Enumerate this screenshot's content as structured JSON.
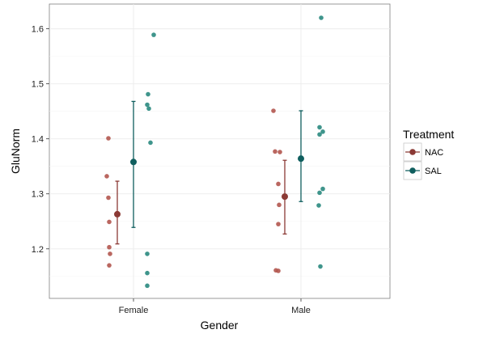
{
  "chart_data": {
    "type": "scatter",
    "xlabel": "Gender",
    "ylabel": "GluNorm",
    "categories": [
      "Female",
      "Male"
    ],
    "ylim": [
      1.11,
      1.645
    ],
    "yticks": [
      1.2,
      1.3,
      1.4,
      1.5,
      1.6
    ],
    "ytick_labels": [
      "1.2",
      "1.3",
      "1.4",
      "1.5",
      "1.6"
    ],
    "grid": true,
    "legend": {
      "title": "Treatment",
      "placement": "right",
      "entries": [
        {
          "label": "NAC",
          "color": "#8b3a35"
        },
        {
          "label": "SAL",
          "color": "#0f5e5e"
        }
      ]
    },
    "series": [
      {
        "name": "NAC",
        "color": "#8b3a35",
        "point_color": "#b3564f",
        "points": {
          "Female": [
            1.401,
            1.332,
            1.293,
            1.249,
            1.203,
            1.191,
            1.17
          ],
          "Male": [
            1.451,
            1.377,
            1.376,
            1.318,
            1.28,
            1.245,
            1.161,
            1.16
          ]
        },
        "summary": {
          "Female": {
            "mean": 1.263,
            "low": 1.209,
            "high": 1.323
          },
          "Male": {
            "mean": 1.295,
            "low": 1.227,
            "high": 1.361
          }
        }
      },
      {
        "name": "SAL",
        "color": "#0f5e5e",
        "point_color": "#2a8a80",
        "points": {
          "Female": [
            1.589,
            1.481,
            1.462,
            1.455,
            1.393,
            1.191,
            1.156,
            1.133
          ],
          "Male": [
            1.62,
            1.421,
            1.413,
            1.408,
            1.309,
            1.302,
            1.279,
            1.168
          ]
        },
        "summary": {
          "Female": {
            "mean": 1.358,
            "low": 1.239,
            "high": 1.468
          },
          "Male": {
            "mean": 1.364,
            "low": 1.286,
            "high": 1.451
          }
        }
      }
    ]
  }
}
